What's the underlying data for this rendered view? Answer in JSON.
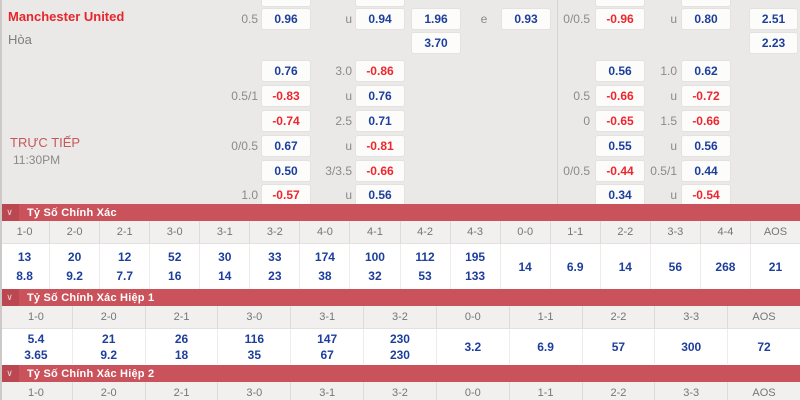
{
  "colors": {
    "board_bg": "#ebe9e7",
    "section_red": "#c9525b",
    "section_red_dark": "#bb4851",
    "value_blue": "#1d3e9c",
    "odds_negative_red": "#ee262d",
    "team_red": "#e6262c",
    "label_gray": "#8a8a8a"
  },
  "odds_board": {
    "home_team": "Manchester United",
    "draw_label": "Hòa",
    "live_label": "TRỰC TIẾP",
    "kickoff_time": "11:30PM",
    "partial_top_cells": [
      {
        "col": "boxA",
        "kind": "box",
        "text": ""
      },
      {
        "col": "ou1",
        "kind": "label",
        "text": "u"
      },
      {
        "col": "boxB",
        "kind": "box",
        "text": ""
      },
      {
        "col": "boxE",
        "kind": "box",
        "text": ""
      },
      {
        "col": "ou2",
        "kind": "label",
        "text": "u"
      },
      {
        "col": "boxF",
        "kind": "box",
        "text": ""
      }
    ],
    "rows": [
      {
        "cells": [
          {
            "col": "hcp1",
            "kind": "label",
            "text": "0.5"
          },
          {
            "col": "boxA",
            "kind": "box",
            "tone": "blue",
            "text": "0.96"
          },
          {
            "col": "ou1",
            "kind": "label",
            "text": "u"
          },
          {
            "col": "boxB",
            "kind": "box",
            "tone": "blue",
            "text": "0.94"
          },
          {
            "col": "boxC",
            "kind": "box",
            "tone": "blue",
            "text": "1.96"
          },
          {
            "col": "lblE",
            "kind": "label",
            "text": "e"
          },
          {
            "col": "boxD",
            "kind": "box",
            "tone": "blue",
            "text": "0.93"
          },
          {
            "col": "hcp2",
            "kind": "label",
            "text": "0/0.5"
          },
          {
            "col": "boxE",
            "kind": "box",
            "tone": "red",
            "text": "-0.96"
          },
          {
            "col": "ou2",
            "kind": "label",
            "text": "u"
          },
          {
            "col": "boxF",
            "kind": "box",
            "tone": "blue",
            "text": "0.80"
          },
          {
            "col": "boxG",
            "kind": "box",
            "tone": "blue",
            "text": "2.51"
          }
        ]
      },
      {
        "cells": [
          {
            "col": "boxC",
            "kind": "box",
            "tone": "blue",
            "text": "3.70"
          },
          {
            "col": "boxG",
            "kind": "box",
            "tone": "blue",
            "text": "2.23"
          }
        ]
      },
      {
        "cells": [
          {
            "col": "boxA",
            "kind": "box",
            "tone": "blue",
            "text": "0.76"
          },
          {
            "col": "ou1",
            "kind": "label",
            "text": "3.0"
          },
          {
            "col": "boxB",
            "kind": "box",
            "tone": "red",
            "text": "-0.86"
          },
          {
            "col": "boxE",
            "kind": "box",
            "tone": "blue",
            "text": "0.56"
          },
          {
            "col": "ou2",
            "kind": "label",
            "text": "1.0"
          },
          {
            "col": "boxF",
            "kind": "box",
            "tone": "blue",
            "text": "0.62"
          }
        ]
      },
      {
        "cells": [
          {
            "col": "hcp1",
            "kind": "label",
            "text": "0.5/1"
          },
          {
            "col": "boxA",
            "kind": "box",
            "tone": "red",
            "text": "-0.83"
          },
          {
            "col": "ou1",
            "kind": "label",
            "text": "u"
          },
          {
            "col": "boxB",
            "kind": "box",
            "tone": "blue",
            "text": "0.76"
          },
          {
            "col": "hcp2",
            "kind": "label",
            "text": "0.5"
          },
          {
            "col": "boxE",
            "kind": "box",
            "tone": "red",
            "text": "-0.66"
          },
          {
            "col": "ou2",
            "kind": "label",
            "text": "u"
          },
          {
            "col": "boxF",
            "kind": "box",
            "tone": "red",
            "text": "-0.72"
          }
        ]
      },
      {
        "cells": [
          {
            "col": "boxA",
            "kind": "box",
            "tone": "red",
            "text": "-0.74"
          },
          {
            "col": "ou1",
            "kind": "label",
            "text": "2.5"
          },
          {
            "col": "boxB",
            "kind": "box",
            "tone": "blue",
            "text": "0.71"
          },
          {
            "col": "hcp2",
            "kind": "label",
            "text": "0"
          },
          {
            "col": "boxE",
            "kind": "box",
            "tone": "red",
            "text": "-0.65"
          },
          {
            "col": "ou2",
            "kind": "label",
            "text": "1.5"
          },
          {
            "col": "boxF",
            "kind": "box",
            "tone": "red",
            "text": "-0.66"
          }
        ]
      },
      {
        "cells": [
          {
            "col": "hcp1",
            "kind": "label",
            "text": "0/0.5"
          },
          {
            "col": "boxA",
            "kind": "box",
            "tone": "blue",
            "text": "0.67"
          },
          {
            "col": "ou1",
            "kind": "label",
            "text": "u"
          },
          {
            "col": "boxB",
            "kind": "box",
            "tone": "red",
            "text": "-0.81"
          },
          {
            "col": "boxE",
            "kind": "box",
            "tone": "blue",
            "text": "0.55"
          },
          {
            "col": "ou2",
            "kind": "label",
            "text": "u"
          },
          {
            "col": "boxF",
            "kind": "box",
            "tone": "blue",
            "text": "0.56"
          }
        ]
      },
      {
        "cells": [
          {
            "col": "boxA",
            "kind": "box",
            "tone": "blue",
            "text": "0.50"
          },
          {
            "col": "ou1",
            "kind": "label",
            "text": "3/3.5"
          },
          {
            "col": "boxB",
            "kind": "box",
            "tone": "red",
            "text": "-0.66"
          },
          {
            "col": "hcp2",
            "kind": "label",
            "text": "0/0.5"
          },
          {
            "col": "boxE",
            "kind": "box",
            "tone": "red",
            "text": "-0.44"
          },
          {
            "col": "ou2",
            "kind": "label",
            "text": "0.5/1"
          },
          {
            "col": "boxF",
            "kind": "box",
            "tone": "blue",
            "text": "0.44"
          }
        ]
      },
      {
        "cells": [
          {
            "col": "hcp1",
            "kind": "label",
            "text": "1.0"
          },
          {
            "col": "boxA",
            "kind": "box",
            "tone": "red",
            "text": "-0.57"
          },
          {
            "col": "ou1",
            "kind": "label",
            "text": "u"
          },
          {
            "col": "boxB",
            "kind": "box",
            "tone": "blue",
            "text": "0.56"
          },
          {
            "col": "boxE",
            "kind": "box",
            "tone": "blue",
            "text": "0.34"
          },
          {
            "col": "ou2",
            "kind": "label",
            "text": "u"
          },
          {
            "col": "boxF",
            "kind": "box",
            "tone": "red",
            "text": "-0.54"
          }
        ]
      }
    ]
  },
  "score_sections": [
    {
      "title": "Tỷ Số Chính Xác",
      "columns": [
        {
          "score": "1-0",
          "values": [
            "13",
            "8.8"
          ]
        },
        {
          "score": "2-0",
          "values": [
            "20",
            "9.2"
          ]
        },
        {
          "score": "2-1",
          "values": [
            "12",
            "7.7"
          ]
        },
        {
          "score": "3-0",
          "values": [
            "52",
            "16"
          ]
        },
        {
          "score": "3-1",
          "values": [
            "30",
            "14"
          ]
        },
        {
          "score": "3-2",
          "values": [
            "33",
            "23"
          ]
        },
        {
          "score": "4-0",
          "values": [
            "174",
            "38"
          ]
        },
        {
          "score": "4-1",
          "values": [
            "100",
            "32"
          ]
        },
        {
          "score": "4-2",
          "values": [
            "112",
            "53"
          ]
        },
        {
          "score": "4-3",
          "values": [
            "195",
            "133"
          ]
        },
        {
          "score": "0-0",
          "values": [
            "14"
          ]
        },
        {
          "score": "1-1",
          "values": [
            "6.9"
          ]
        },
        {
          "score": "2-2",
          "values": [
            "14"
          ]
        },
        {
          "score": "3-3",
          "values": [
            "56"
          ]
        },
        {
          "score": "4-4",
          "values": [
            "268"
          ]
        },
        {
          "score": "AOS",
          "values": [
            "21"
          ]
        }
      ]
    },
    {
      "title": "Tỷ Số Chính Xác Hiệp 1",
      "columns": [
        {
          "score": "1-0",
          "values": [
            "5.4",
            "3.65"
          ]
        },
        {
          "score": "2-0",
          "values": [
            "21",
            "9.2"
          ]
        },
        {
          "score": "2-1",
          "values": [
            "26",
            "18"
          ]
        },
        {
          "score": "3-0",
          "values": [
            "116",
            "35"
          ]
        },
        {
          "score": "3-1",
          "values": [
            "147",
            "67"
          ]
        },
        {
          "score": "3-2",
          "values": [
            "230",
            "230"
          ]
        },
        {
          "score": "0-0",
          "values": [
            "3.2"
          ]
        },
        {
          "score": "1-1",
          "values": [
            "6.9"
          ]
        },
        {
          "score": "2-2",
          "values": [
            "57"
          ]
        },
        {
          "score": "3-3",
          "values": [
            "300"
          ]
        },
        {
          "score": "AOS",
          "values": [
            "72"
          ]
        }
      ]
    },
    {
      "title": "Tỷ Số Chính Xác Hiệp 2",
      "columns": [
        {
          "score": "1-0",
          "values": []
        },
        {
          "score": "2-0",
          "values": []
        },
        {
          "score": "2-1",
          "values": []
        },
        {
          "score": "3-0",
          "values": []
        },
        {
          "score": "3-1",
          "values": []
        },
        {
          "score": "3-2",
          "values": []
        },
        {
          "score": "0-0",
          "values": []
        },
        {
          "score": "1-1",
          "values": []
        },
        {
          "score": "2-2",
          "values": []
        },
        {
          "score": "3-3",
          "values": []
        },
        {
          "score": "AOS",
          "values": []
        }
      ]
    }
  ]
}
